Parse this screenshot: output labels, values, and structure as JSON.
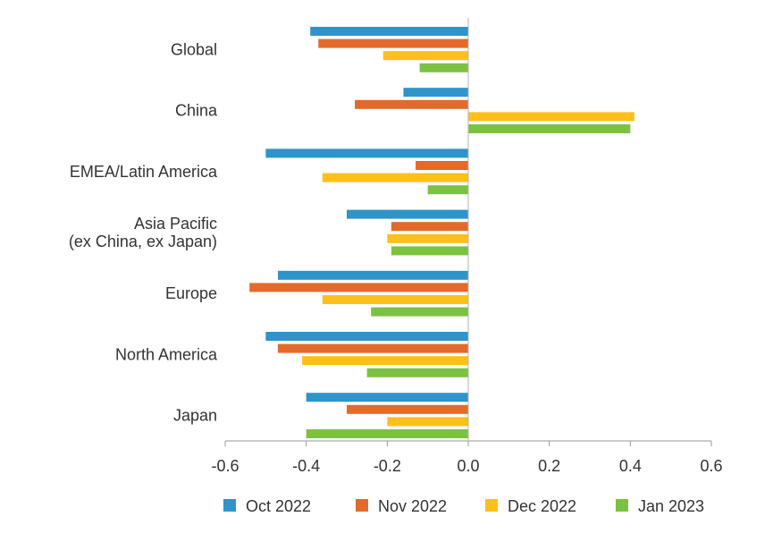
{
  "chart_data": {
    "type": "bar",
    "orientation": "horizontal",
    "categories": [
      [
        "Global"
      ],
      [
        "China"
      ],
      [
        "EMEA/Latin America"
      ],
      [
        "Asia Pacific",
        "(ex China, ex Japan)"
      ],
      [
        "Europe"
      ],
      [
        "North America"
      ],
      [
        "Japan"
      ]
    ],
    "series": [
      {
        "name": "Oct 2022",
        "color": "#2e94c9",
        "values": [
          -0.39,
          -0.16,
          -0.5,
          -0.3,
          -0.47,
          -0.5,
          -0.4
        ]
      },
      {
        "name": "Nov 2022",
        "color": "#e36a2a",
        "values": [
          -0.37,
          -0.28,
          -0.13,
          -0.19,
          -0.54,
          -0.47,
          -0.3
        ]
      },
      {
        "name": "Dec 2022",
        "color": "#fdbf1a",
        "values": [
          -0.21,
          0.41,
          -0.36,
          -0.2,
          -0.36,
          -0.41,
          -0.2
        ]
      },
      {
        "name": "Jan 2023",
        "color": "#7cc242",
        "values": [
          -0.12,
          0.4,
          -0.1,
          -0.19,
          -0.24,
          -0.25,
          -0.4
        ]
      }
    ],
    "xlim": [
      -0.6,
      0.6
    ],
    "xticks": [
      "-0.6",
      "-0.4",
      "-0.2",
      "0.0",
      "0.2",
      "0.4",
      "0.6"
    ],
    "grid": false,
    "legend_position": "bottom"
  }
}
